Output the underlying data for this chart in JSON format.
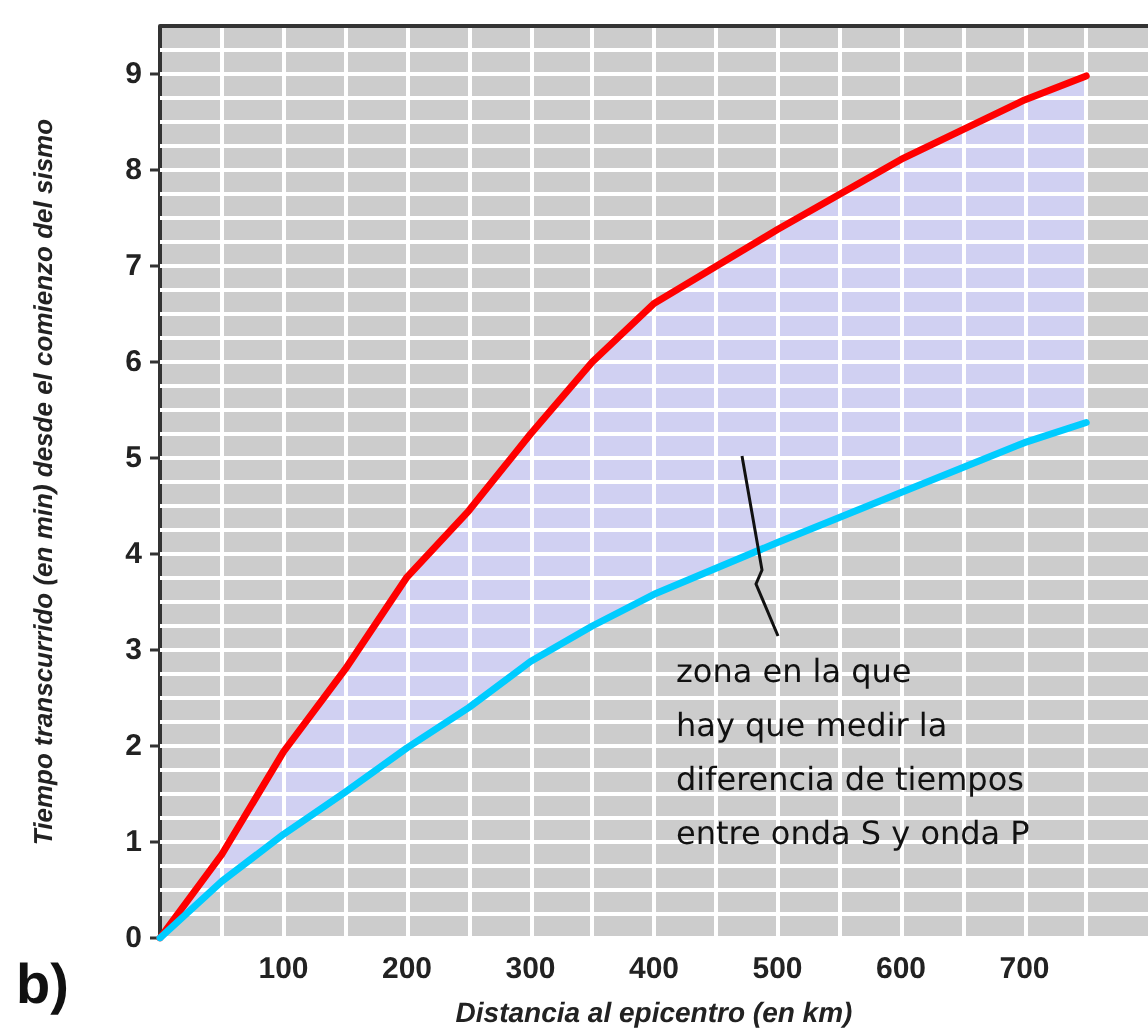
{
  "chart_data": {
    "type": "line",
    "xlabel": "Distancia al epicentro (en km)",
    "ylabel": "Tiempo transcurrido (en min) desde el comienzo del sismo",
    "x": [
      0,
      50,
      100,
      150,
      200,
      250,
      300,
      350,
      400,
      500,
      600,
      700,
      750
    ],
    "series": [
      {
        "color": "#ff0000",
        "values": [
          0,
          0.87,
          1.94,
          2.8,
          3.76,
          4.45,
          5.25,
          6.0,
          6.61,
          7.38,
          8.11,
          8.73,
          8.98
        ],
        "lower": [
          0,
          0.59,
          1.08,
          1.52,
          1.98,
          2.4,
          2.88,
          3.25,
          3.58,
          4.12,
          4.64,
          5.16,
          5.37
        ],
        "upper": [
          0,
          0.87,
          1.94,
          2.8,
          3.76,
          4.45,
          5.25,
          6.0,
          6.61,
          7.38,
          8.11,
          8.73,
          8.98
        ]
      },
      {
        "color": "#00ccff",
        "values": [
          0,
          0.59,
          1.08,
          1.52,
          1.98,
          2.4,
          2.88,
          3.25,
          3.58,
          4.12,
          4.64,
          5.16,
          5.37
        ]
      }
    ],
    "xlim": [
      0,
      800
    ],
    "ylim": [
      0,
      9.5
    ],
    "xticks": [
      {
        "value": 50,
        "label": null
      },
      100,
      {
        "value": 150,
        "label": null
      },
      200,
      {
        "value": 250,
        "label": null
      },
      300,
      {
        "value": 350,
        "label": null
      },
      400,
      {
        "value": 450,
        "label": null
      },
      500,
      {
        "value": 550,
        "label": null
      },
      600,
      {
        "value": 650,
        "label": null
      },
      700,
      {
        "value": 750,
        "label": null
      }
    ],
    "yticks": [
      0,
      {
        "value": 0.25,
        "label": null
      },
      {
        "value": 0.5,
        "label": null
      },
      {
        "value": 0.75,
        "label": null
      },
      1,
      {
        "value": 1.25,
        "label": null
      },
      {
        "value": 1.5,
        "label": null
      },
      {
        "value": 1.75,
        "label": null
      },
      2,
      {
        "value": 2.25,
        "label": null
      },
      {
        "value": 2.5,
        "label": null
      },
      {
        "value": 2.75,
        "label": null
      },
      3,
      {
        "value": 3.25,
        "label": null
      },
      {
        "value": 3.5,
        "label": null
      },
      {
        "value": 3.75,
        "label": null
      },
      4,
      {
        "value": 4.25,
        "label": null
      },
      {
        "value": 4.5,
        "label": null
      },
      {
        "value": 4.75,
        "label": null
      },
      5,
      {
        "value": 5.25,
        "label": null
      },
      {
        "value": 5.5,
        "label": null
      },
      {
        "value": 5.75,
        "label": null
      },
      6,
      {
        "value": 6.25,
        "label": null
      },
      {
        "value": 6.5,
        "label": null
      },
      {
        "value": 6.75,
        "label": null
      },
      7,
      {
        "value": 7.25,
        "label": null
      },
      {
        "value": 7.5,
        "label": null
      },
      {
        "value": 7.75,
        "label": null
      },
      8,
      {
        "value": 8.25,
        "label": null
      },
      {
        "value": 8.5,
        "label": null
      },
      {
        "value": 8.75,
        "label": null
      },
      9,
      {
        "value": 9.25,
        "label": null
      }
    ],
    "grid": true,
    "marker": "none",
    "line_style": "solid",
    "annotations": [
      "zona en la que\nhay que medir la\ndiferencia de tiempos\nentre onda S y onda P",
      "b)"
    ]
  }
}
